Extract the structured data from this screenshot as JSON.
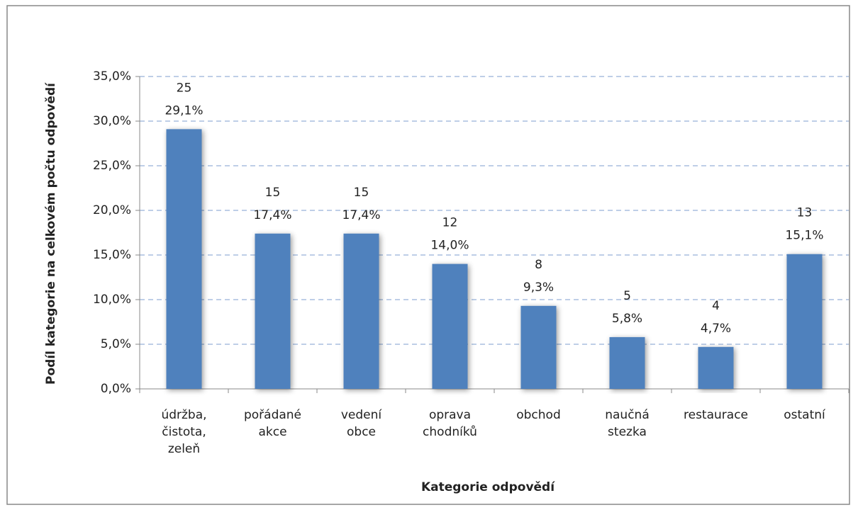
{
  "chart_data": {
    "type": "bar",
    "x_label": "Kategorie odpovědí",
    "y_label": "Podíl kategorie na celkovém počtu odpovědí",
    "categories": [
      "údržba, čistota, zeleň",
      "pořádané akce",
      "vedení obce",
      "oprava chodníků",
      "obchod",
      "naučná stezka",
      "restaurace",
      "ostatní"
    ],
    "values": [
      29.1,
      17.4,
      17.4,
      14.0,
      9.3,
      5.8,
      4.7,
      15.1
    ],
    "value_labels": [
      "29,1%",
      "17,4%",
      "17,4%",
      "14,0%",
      "9,3%",
      "5,8%",
      "4,7%",
      "15,1%"
    ],
    "counts": [
      25,
      15,
      15,
      12,
      8,
      5,
      4,
      13
    ],
    "color": "#4f81bd",
    "ylim": [
      0,
      35
    ],
    "yticks": [
      {
        "value": 0,
        "label": "0,0%"
      },
      {
        "value": 5,
        "label": "5,0%"
      },
      {
        "value": 10,
        "label": "10,0%"
      },
      {
        "value": 15,
        "label": "15,0%"
      },
      {
        "value": 20,
        "label": "20,0%"
      },
      {
        "value": 25,
        "label": "25,0%"
      },
      {
        "value": 30,
        "label": "30,0%"
      },
      {
        "value": 35,
        "label": "35,0%"
      }
    ],
    "grid": true
  }
}
